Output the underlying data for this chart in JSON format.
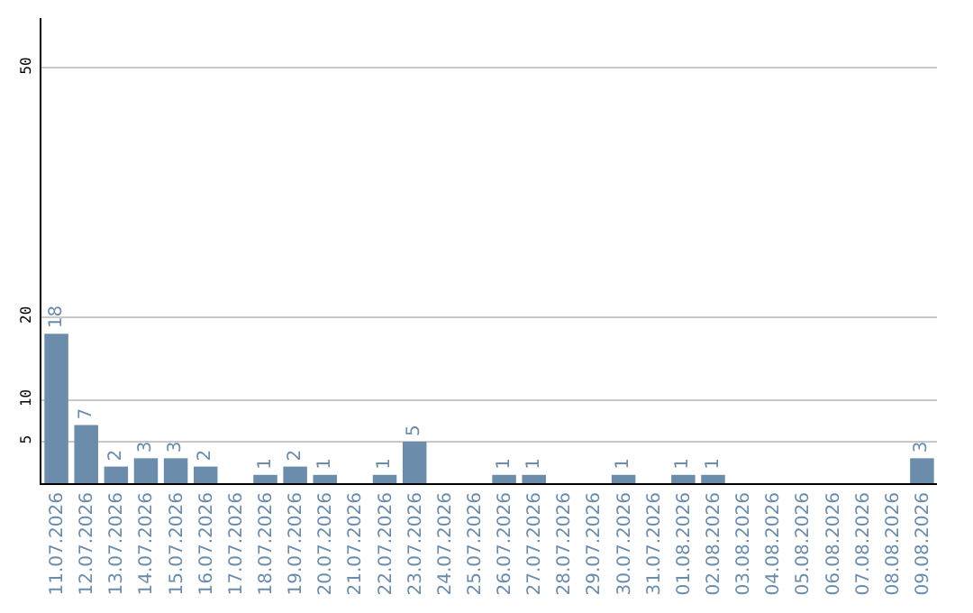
{
  "chart_data": {
    "type": "bar",
    "categories": [
      "11.07.2026",
      "12.07.2026",
      "13.07.2026",
      "14.07.2026",
      "15.07.2026",
      "16.07.2026",
      "17.07.2026",
      "18.07.2026",
      "19.07.2026",
      "20.07.2026",
      "21.07.2026",
      "22.07.2026",
      "23.07.2026",
      "24.07.2026",
      "25.07.2026",
      "26.07.2026",
      "27.07.2026",
      "28.07.2026",
      "29.07.2026",
      "30.07.2026",
      "31.07.2026",
      "01.08.2026",
      "02.08.2026",
      "03.08.2026",
      "04.08.2026",
      "05.08.2026",
      "06.08.2026",
      "07.08.2026",
      "08.08.2026",
      "09.08.2026"
    ],
    "values": [
      18,
      7,
      2,
      3,
      3,
      2,
      0,
      1,
      2,
      1,
      0,
      1,
      5,
      0,
      0,
      1,
      1,
      0,
      0,
      1,
      0,
      1,
      1,
      0,
      0,
      0,
      0,
      0,
      0,
      3
    ],
    "value_labels": [
      "18",
      "7",
      "2",
      "3",
      "3",
      "2",
      null,
      "1",
      "2",
      "1",
      null,
      "1",
      "5",
      null,
      null,
      "1",
      "1",
      null,
      null,
      "1",
      null,
      "1",
      "1",
      null,
      null,
      null,
      null,
      null,
      null,
      "3"
    ],
    "color": "#6c8cac",
    "ylim": [
      0,
      56
    ],
    "yticks": [
      5,
      10,
      20,
      50
    ],
    "grid": "y",
    "legend": false
  }
}
